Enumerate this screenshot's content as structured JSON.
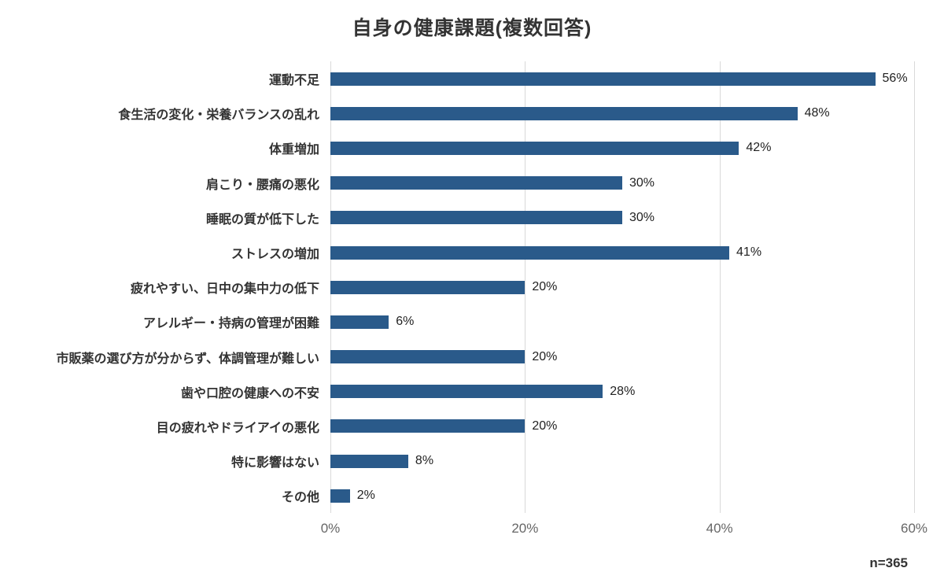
{
  "title": "自身の健康課題(複数回答)",
  "footnote": "n=365",
  "chart_data": {
    "type": "bar",
    "orientation": "horizontal",
    "title": "自身の健康課題(複数回答)",
    "categories": [
      "運動不足",
      "食生活の変化・栄養バランスの乱れ",
      "体重増加",
      "肩こり・腰痛の悪化",
      "睡眠の質が低下した",
      "ストレスの増加",
      "疲れやすい、日中の集中力の低下",
      "アレルギー・持病の管理が困難",
      "市販薬の選び方が分からず、体調管理が難しい",
      "歯や口腔の健康への不安",
      "目の疲れやドライアイの悪化",
      "特に影響はない",
      "その他"
    ],
    "values": [
      56,
      48,
      42,
      30,
      30,
      41,
      20,
      6,
      20,
      28,
      20,
      8,
      2
    ],
    "value_suffix": "%",
    "xlabel": "",
    "ylabel": "",
    "xlim": [
      0,
      60
    ],
    "ticks": [
      0,
      20,
      40,
      60
    ],
    "tick_labels": [
      "0%",
      "20%",
      "40%",
      "60%"
    ],
    "bar_color": "#2a5a8a",
    "grid": true,
    "legend": false,
    "annotation": "n=365"
  }
}
